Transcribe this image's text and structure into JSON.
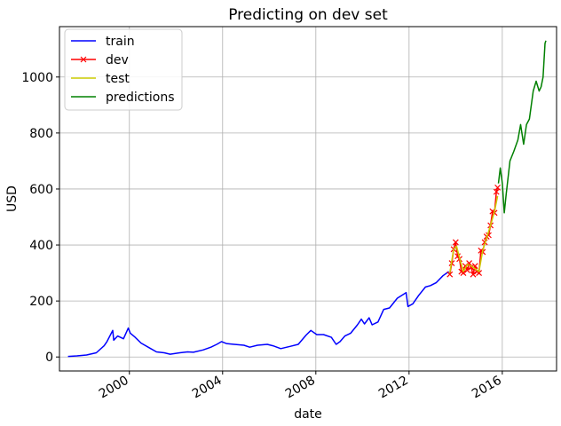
{
  "chart_data": {
    "type": "line",
    "title": "Predicting on dev set",
    "xlabel": "date",
    "ylabel": "USD",
    "xlim": [
      "1997-01-01",
      "2018-05-01"
    ],
    "ylim": [
      -50,
      1180
    ],
    "grid": true,
    "legend_position": "top-left",
    "x_ticks": [
      "2000",
      "2004",
      "2008",
      "2012",
      "2016"
    ],
    "y_ticks": [
      0,
      200,
      400,
      600,
      800,
      1000
    ],
    "series": [
      {
        "name": "train",
        "color": "#0000ff",
        "marker": "none",
        "points": [
          [
            "1997-05-15",
            2
          ],
          [
            "1997-10-01",
            4
          ],
          [
            "1998-03-01",
            7
          ],
          [
            "1998-08-01",
            15
          ],
          [
            "1998-12-01",
            40
          ],
          [
            "1999-01-15",
            55
          ],
          [
            "1999-04-15",
            95
          ],
          [
            "1999-05-01",
            60
          ],
          [
            "1999-07-01",
            75
          ],
          [
            "1999-10-01",
            65
          ],
          [
            "1999-12-15",
            103
          ],
          [
            "2000-01-15",
            85
          ],
          [
            "2000-04-01",
            70
          ],
          [
            "2000-07-01",
            50
          ],
          [
            "2000-12-01",
            30
          ],
          [
            "2001-03-01",
            18
          ],
          [
            "2001-07-01",
            15
          ],
          [
            "2001-10-01",
            10
          ],
          [
            "2002-03-01",
            15
          ],
          [
            "2002-07-01",
            18
          ],
          [
            "2002-10-01",
            17
          ],
          [
            "2003-03-01",
            25
          ],
          [
            "2003-07-01",
            35
          ],
          [
            "2003-10-01",
            45
          ],
          [
            "2003-12-15",
            55
          ],
          [
            "2004-03-01",
            48
          ],
          [
            "2004-07-01",
            45
          ],
          [
            "2004-12-01",
            42
          ],
          [
            "2005-03-01",
            35
          ],
          [
            "2005-07-01",
            42
          ],
          [
            "2005-12-01",
            45
          ],
          [
            "2006-03-01",
            40
          ],
          [
            "2006-07-01",
            30
          ],
          [
            "2006-12-01",
            38
          ],
          [
            "2007-04-01",
            45
          ],
          [
            "2007-08-01",
            78
          ],
          [
            "2007-10-15",
            95
          ],
          [
            "2008-01-15",
            80
          ],
          [
            "2008-05-01",
            80
          ],
          [
            "2008-09-01",
            70
          ],
          [
            "2008-11-15",
            45
          ],
          [
            "2009-01-15",
            55
          ],
          [
            "2009-04-01",
            75
          ],
          [
            "2009-07-01",
            85
          ],
          [
            "2009-10-15",
            115
          ],
          [
            "2009-12-15",
            135
          ],
          [
            "2010-02-01",
            118
          ],
          [
            "2010-04-15",
            140
          ],
          [
            "2010-06-01",
            115
          ],
          [
            "2010-09-01",
            125
          ],
          [
            "2010-12-01",
            170
          ],
          [
            "2011-03-01",
            175
          ],
          [
            "2011-07-01",
            210
          ],
          [
            "2011-11-15",
            230
          ],
          [
            "2011-12-15",
            180
          ],
          [
            "2012-03-01",
            190
          ],
          [
            "2012-06-01",
            220
          ],
          [
            "2012-09-15",
            250
          ],
          [
            "2012-12-01",
            255
          ],
          [
            "2013-03-01",
            265
          ],
          [
            "2013-06-15",
            290
          ],
          [
            "2013-09-15",
            305
          ]
        ]
      },
      {
        "name": "dev",
        "color": "#ff0000",
        "marker": "x",
        "points": [
          [
            "2013-10-01",
            295
          ],
          [
            "2013-11-01",
            335
          ],
          [
            "2013-12-01",
            385
          ],
          [
            "2014-01-01",
            410
          ],
          [
            "2014-02-01",
            360
          ],
          [
            "2014-03-01",
            350
          ],
          [
            "2014-04-01",
            305
          ],
          [
            "2014-05-01",
            300
          ],
          [
            "2014-06-01",
            325
          ],
          [
            "2014-07-01",
            310
          ],
          [
            "2014-08-01",
            335
          ],
          [
            "2014-09-01",
            320
          ],
          [
            "2014-10-01",
            295
          ],
          [
            "2014-11-01",
            325
          ],
          [
            "2014-12-01",
            305
          ],
          [
            "2015-01-01",
            300
          ],
          [
            "2015-02-01",
            380
          ],
          [
            "2015-03-01",
            375
          ],
          [
            "2015-04-01",
            410
          ],
          [
            "2015-05-01",
            430
          ],
          [
            "2015-06-01",
            435
          ],
          [
            "2015-07-01",
            470
          ],
          [
            "2015-08-01",
            520
          ],
          [
            "2015-09-01",
            515
          ],
          [
            "2015-10-01",
            590
          ],
          [
            "2015-10-20",
            605
          ]
        ]
      },
      {
        "name": "test",
        "color": "#cccc00",
        "marker": "none",
        "points": [
          [
            "2013-10-01",
            300
          ],
          [
            "2013-12-01",
            385
          ],
          [
            "2014-01-15",
            395
          ],
          [
            "2014-03-01",
            355
          ],
          [
            "2014-05-01",
            305
          ],
          [
            "2014-07-01",
            330
          ],
          [
            "2014-09-01",
            325
          ],
          [
            "2014-11-01",
            315
          ],
          [
            "2015-01-01",
            305
          ],
          [
            "2015-03-01",
            380
          ],
          [
            "2015-05-01",
            425
          ],
          [
            "2015-07-01",
            470
          ],
          [
            "2015-09-01",
            520
          ],
          [
            "2015-10-20",
            575
          ]
        ]
      },
      {
        "name": "predictions",
        "color": "#008000",
        "marker": "none",
        "points": [
          [
            "2015-11-01",
            620
          ],
          [
            "2015-12-01",
            675
          ],
          [
            "2016-01-01",
            620
          ],
          [
            "2016-02-01",
            515
          ],
          [
            "2016-03-01",
            580
          ],
          [
            "2016-05-01",
            700
          ],
          [
            "2016-07-01",
            735
          ],
          [
            "2016-09-01",
            775
          ],
          [
            "2016-10-15",
            830
          ],
          [
            "2016-12-01",
            760
          ],
          [
            "2017-01-15",
            830
          ],
          [
            "2017-03-01",
            850
          ],
          [
            "2017-05-01",
            950
          ],
          [
            "2017-06-15",
            985
          ],
          [
            "2017-08-01",
            950
          ],
          [
            "2017-09-01",
            965
          ],
          [
            "2017-10-01",
            1000
          ],
          [
            "2017-11-01",
            1120
          ],
          [
            "2017-11-15",
            1130
          ]
        ]
      }
    ]
  }
}
